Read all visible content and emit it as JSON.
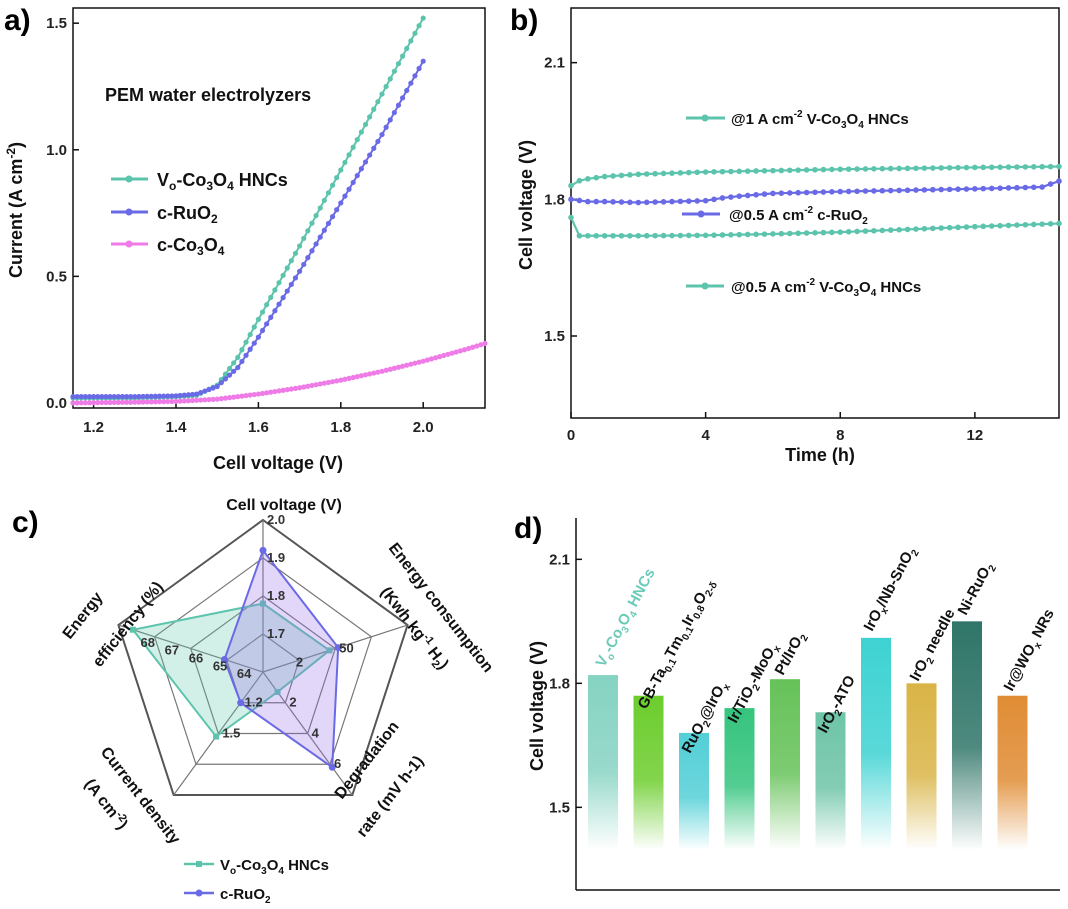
{
  "chart_data": [
    {
      "panel": "a)",
      "type": "line",
      "title": "PEM water electrolyzers",
      "xlabel": "Cell voltage (V)",
      "ylabel": "Current (A cm⁻²)",
      "xlim": [
        1.15,
        2.15
      ],
      "ylim": [
        -0.02,
        1.56
      ],
      "xticks": [
        "1.2",
        "1.4",
        "1.6",
        "1.8",
        "2.0"
      ],
      "yticks": [
        "0.0",
        "0.5",
        "1.0",
        "1.5"
      ],
      "legend": [
        "Vo-Co3O4 HNCs",
        "c-RuO2",
        "c-Co3O4"
      ],
      "series": [
        {
          "name": "Vo-Co3O4 HNCs",
          "color": "#5cc4ad",
          "x": [
            1.15,
            1.3,
            1.4,
            1.45,
            1.5,
            1.55,
            1.6,
            1.7,
            1.8,
            1.9,
            2.0
          ],
          "y": [
            0.02,
            0.02,
            0.025,
            0.03,
            0.07,
            0.18,
            0.33,
            0.62,
            0.92,
            1.22,
            1.52
          ]
        },
        {
          "name": "c-RuO2",
          "color": "#6a6ae6",
          "x": [
            1.15,
            1.3,
            1.4,
            1.45,
            1.5,
            1.55,
            1.6,
            1.7,
            1.8,
            1.9,
            2.0
          ],
          "y": [
            0.025,
            0.025,
            0.028,
            0.035,
            0.065,
            0.14,
            0.26,
            0.52,
            0.79,
            1.06,
            1.35
          ]
        },
        {
          "name": "c-Co3O4",
          "color": "#ee7be6",
          "x": [
            1.15,
            1.3,
            1.4,
            1.5,
            1.6,
            1.7,
            1.8,
            1.9,
            2.0,
            2.1,
            2.15
          ],
          "y": [
            0.0,
            0.003,
            0.006,
            0.015,
            0.035,
            0.06,
            0.09,
            0.125,
            0.165,
            0.21,
            0.235
          ]
        }
      ]
    },
    {
      "panel": "b)",
      "type": "line",
      "xlabel": "Time (h)",
      "ylabel": "Cell voltage (V)",
      "xlim": [
        0,
        14.5
      ],
      "ylim": [
        1.32,
        2.22
      ],
      "xticks": [
        "0",
        "4",
        "8",
        "12"
      ],
      "yticks": [
        "1.5",
        "1.8",
        "2.1"
      ],
      "series": [
        {
          "name": "@1 A cm⁻² V-Co3O4 HNCs",
          "color": "#5cc4ad",
          "x": [
            0,
            0.2,
            0.5,
            1,
            2,
            4,
            6,
            8,
            10,
            12,
            14.5
          ],
          "y": [
            1.83,
            1.84,
            1.845,
            1.85,
            1.855,
            1.86,
            1.863,
            1.866,
            1.868,
            1.87,
            1.872
          ]
        },
        {
          "name": "@0.5 A cm⁻² c-RuO2",
          "color": "#6a6ae6",
          "x": [
            0,
            0.5,
            1,
            2,
            3,
            4,
            4.5,
            5,
            6,
            8,
            10,
            12,
            14,
            14.5
          ],
          "y": [
            1.8,
            1.795,
            1.795,
            1.793,
            1.795,
            1.797,
            1.803,
            1.807,
            1.813,
            1.817,
            1.82,
            1.823,
            1.827,
            1.84
          ]
        },
        {
          "name": "@0.5 A cm⁻² V-Co3O4 HNCs",
          "color": "#5cc4ad",
          "x": [
            0,
            0.2,
            1,
            2,
            4,
            6,
            8,
            10,
            12,
            14.5
          ],
          "y": [
            1.76,
            1.72,
            1.72,
            1.72,
            1.721,
            1.724,
            1.728,
            1.734,
            1.74,
            1.747
          ]
        }
      ]
    },
    {
      "panel": "c)",
      "type": "radar",
      "axes": [
        {
          "label": "Cell voltage (V)",
          "ticks": [
            "2.0",
            "1.9",
            "1.8",
            "1.7"
          ]
        },
        {
          "label": "Energy consumption (Kwh kg⁻¹ H₂)",
          "ticks": [
            "50",
            "2"
          ]
        },
        {
          "label": "Degradation rate (mV h-1)",
          "ticks": [
            "6",
            "4",
            "2"
          ]
        },
        {
          "label": "Current density (A cm⁻²)",
          "ticks": [
            "1.5",
            "1.2"
          ]
        },
        {
          "label": "Energy efficiency (%)",
          "ticks": [
            "68",
            "67",
            "66",
            "65",
            "64"
          ]
        }
      ],
      "series": [
        {
          "name": "Vo-Co3O4 HNCs",
          "color": "#5cc4ad",
          "values": [
            1.78,
            49.2,
            1.3,
            1.53,
            68.4
          ]
        },
        {
          "name": "c-RuO2",
          "color": "#6a6ae6",
          "values": [
            1.92,
            50.4,
            6.2,
            1.2,
            64.6
          ]
        }
      ],
      "legend": [
        "Vo-Co3O4 HNCs",
        "c-RuO2"
      ]
    },
    {
      "panel": "d)",
      "type": "bar",
      "ylabel": "Cell voltage (V)",
      "ylim": [
        1.3,
        2.2
      ],
      "yticks": [
        "1.5",
        "1.8",
        "2.1"
      ],
      "categories": [
        "Vo-Co3O4 HNCs",
        "GB-Ta0.1Tm0.1Ir0.8O2-δ",
        "RuO2@IrOx",
        "Ir/TiO2-MoOx",
        "Pt/IrO2",
        "IrO2-ATO",
        "IrOx/Nb-SnO2",
        "IrO2 needle",
        "Ni-RuO2",
        "Ir@WOx NRs"
      ],
      "values": [
        1.82,
        1.77,
        1.68,
        1.74,
        1.81,
        1.73,
        1.91,
        1.8,
        1.95,
        1.77
      ],
      "colors": [
        "#86d3c2",
        "#6ccd2d",
        "#53cfd6",
        "#35c47e",
        "#66c259",
        "#6ec4a7",
        "#3ed2d2",
        "#d9b446",
        "#2f7568",
        "#e08c34"
      ]
    }
  ],
  "labels": {
    "panel_a": "a)",
    "panel_b": "b)",
    "panel_c": "c)",
    "panel_d": "d)",
    "a_title": "PEM water electrolyzers",
    "a_xlabel": "Cell voltage (V)",
    "b_xlabel": "Time (h)",
    "b_ylabel": "Cell voltage (V)",
    "b_ann1_pre": "@1 A cm",
    "b_ann1_sup": "-2",
    "b_ann1_post": " V-Co",
    "b_ann1_sub1": "3",
    "b_ann1_o": "O",
    "b_ann1_sub2": "4",
    "b_ann1_end": " HNCs",
    "b_ann2_pre": "@0.5 A cm",
    "b_ann2_sup": "-2",
    "b_ann2_post": " c-RuO",
    "b_ann2_sub": "2",
    "b_ann3_pre": "@0.5 A cm",
    "b_ann3_sup": "-2",
    "b_ann3_post": " V-Co",
    "b_ann3_sub1": "3",
    "b_ann3_o": "O",
    "b_ann3_sub2": "4",
    "b_ann3_end": " HNCs",
    "d_ylabel": "Cell voltage (V)"
  }
}
